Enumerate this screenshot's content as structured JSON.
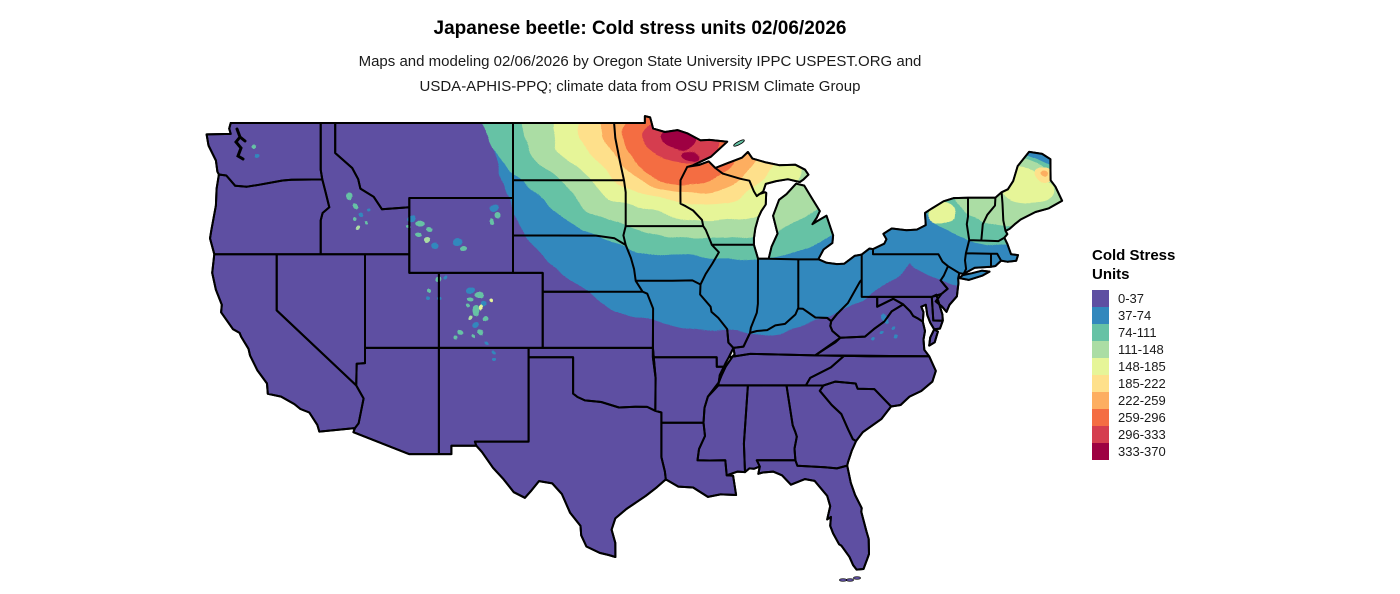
{
  "header": {
    "title": "Japanese beetle: Cold stress units 02/06/2026",
    "subtitle_line1": "Maps and modeling 02/06/2026 by Oregon State University IPPC USPEST.ORG and",
    "subtitle_line2": "USDA-APHIS-PPQ; climate data from OSU PRISM Climate Group"
  },
  "legend": {
    "title_line1": "Cold Stress",
    "title_line2": "Units",
    "items": [
      {
        "label": "0-37",
        "color": "#5e4fa2"
      },
      {
        "label": "37-74",
        "color": "#3288bd"
      },
      {
        "label": "74-111",
        "color": "#66c2a5"
      },
      {
        "label": "111-148",
        "color": "#abdda4"
      },
      {
        "label": "148-185",
        "color": "#e6f598"
      },
      {
        "label": "185-222",
        "color": "#fee08b"
      },
      {
        "label": "222-259",
        "color": "#fdae61"
      },
      {
        "label": "259-296",
        "color": "#f46d43"
      },
      {
        "label": "296-333",
        "color": "#d53e4f"
      },
      {
        "label": "333-370",
        "color": "#9e0142"
      }
    ]
  },
  "map_style": {
    "background": "#ffffff",
    "state_border_color": "#000000",
    "water_color": "#ffffff"
  },
  "chart_data": {
    "type": "heatmap",
    "subtype": "choropleth-raster-map",
    "title": "Japanese beetle: Cold stress units 02/06/2026",
    "organism": "Japanese beetle",
    "variable": "Cold Stress Units",
    "date": "02/06/2026",
    "attribution": "Maps and modeling 02/06/2026 by Oregon State University IPPC USPEST.ORG and USDA-APHIS-PPQ; climate data from OSU PRISM Climate Group",
    "extent": "Conterminous United States (lower 48 states)",
    "legend_position": "right",
    "classes": [
      {
        "range": "0-37",
        "color": "#5e4fa2"
      },
      {
        "range": "37-74",
        "color": "#3288bd"
      },
      {
        "range": "74-111",
        "color": "#66c2a5"
      },
      {
        "range": "111-148",
        "color": "#abdda4"
      },
      {
        "range": "148-185",
        "color": "#e6f598"
      },
      {
        "range": "185-222",
        "color": "#fee08b"
      },
      {
        "range": "222-259",
        "color": "#fdae61"
      },
      {
        "range": "259-296",
        "color": "#f46d43"
      },
      {
        "range": "296-333",
        "color": "#d53e4f"
      },
      {
        "range": "333-370",
        "color": "#9e0142"
      }
    ],
    "regions": [
      {
        "region": "Southern, central and western US (TX, Gulf Coast, Southeast, CA, NV, AZ, NM, UT, southern Plains, lowland Pacific NW)",
        "value": "0-37"
      },
      {
        "region": "Northern band: eastern Montana, western South Dakota, eastern Nebraska, Iowa, northern Missouri, central Illinois/Indiana/Ohio, Pennsylvania, southern New York, southern New England",
        "value": "37-74"
      },
      {
        "region": "Northern South Dakota, southern Minnesota, southern Wisconsin, central Michigan, coastal northern New England",
        "value": "74-111"
      },
      {
        "region": "Central Minnesota, central Wisconsin, northern Michigan, Adirondacks, interior New England",
        "value": "111-185"
      },
      {
        "region": "Northeastern North Dakota, northwestern Minnesota, far northern Wisconsin",
        "value": "185-259"
      },
      {
        "region": "Northern Minnesota",
        "value": "259-333"
      },
      {
        "region": "Northeastern Minnesota Arrowhead (maximum cold stress)",
        "value": "333-370"
      },
      {
        "region": "Rocky Mountain high elevations (central ID, NW WY, UT ranges, CO Rockies) - isolated pockets",
        "value": "37-148"
      },
      {
        "region": "Interior Maine hotspot",
        "value": "148-259"
      }
    ]
  }
}
